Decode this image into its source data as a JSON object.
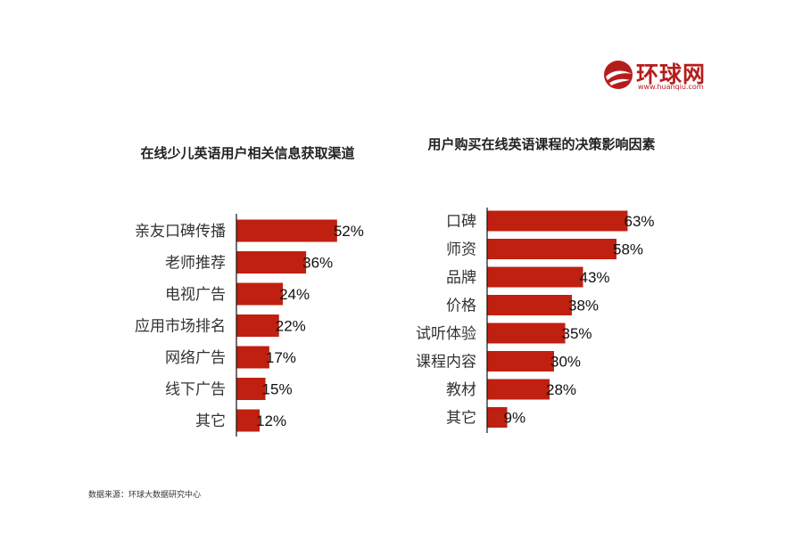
{
  "logo": {
    "text": "环球网",
    "url": "www.huanqiu.com",
    "color": "#b51d1d"
  },
  "source": "数据来源：环球大数据研究中心",
  "bar_color": "#c0200f",
  "chart_data": [
    {
      "type": "bar",
      "orientation": "horizontal",
      "title": "在线少儿英语用户相关信息获取渠道",
      "categories": [
        "亲友口碑传播",
        "老师推荐",
        "电视广告",
        "应用市场排名",
        "网络广告",
        "线下广告",
        "其它"
      ],
      "values": [
        52,
        36,
        24,
        22,
        17,
        15,
        12
      ],
      "data_labels": [
        "52%",
        "36%",
        "24%",
        "22%",
        "17%",
        "15%",
        "12%"
      ],
      "unit": "%",
      "xlabel": "",
      "ylabel": "",
      "grid": false
    },
    {
      "type": "bar",
      "orientation": "horizontal",
      "title": "用户购买在线英语课程的决策影响因素",
      "categories": [
        "口碑",
        "师资",
        "品牌",
        "价格",
        "试听体验",
        "课程内容",
        "教材",
        "其它"
      ],
      "values": [
        63,
        58,
        43,
        38,
        35,
        30,
        28,
        9
      ],
      "data_labels": [
        "63%",
        "58%",
        "43%",
        "38%",
        "35%",
        "30%",
        "28%",
        "9%"
      ],
      "unit": "%",
      "xlabel": "",
      "ylabel": "",
      "grid": false
    }
  ]
}
